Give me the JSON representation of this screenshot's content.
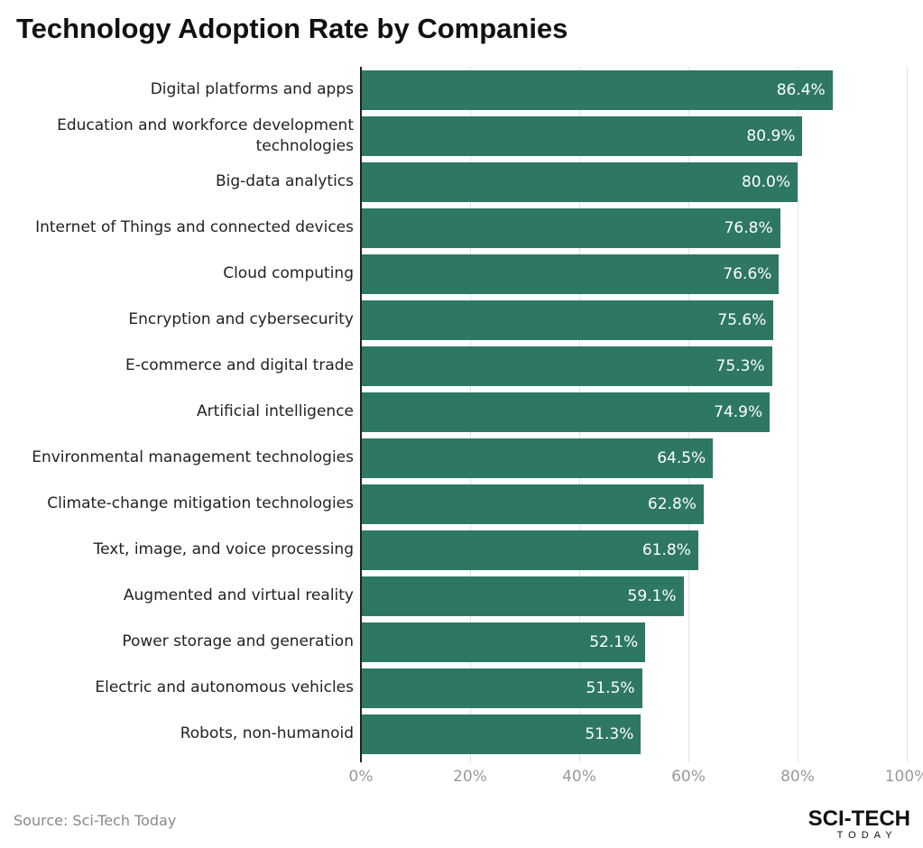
{
  "chart_data": {
    "type": "bar",
    "orientation": "horizontal",
    "title": "Technology Adoption Rate by Companies",
    "categories": [
      "Digital platforms and apps",
      "Education and workforce development technologies",
      "Big-data analytics",
      "Internet of Things and connected devices",
      "Cloud computing",
      "Encryption and cybersecurity",
      "E-commerce and digital trade",
      "Artificial intelligence",
      "Environmental management technologies",
      "Climate-change mitigation technologies",
      "Text, image, and voice processing",
      "Augmented and virtual reality",
      "Power storage and generation",
      "Electric and autonomous vehicles",
      "Robots, non-humanoid"
    ],
    "values": [
      86.4,
      80.9,
      80.0,
      76.8,
      76.6,
      75.6,
      75.3,
      74.9,
      64.5,
      62.8,
      61.8,
      59.1,
      52.1,
      51.5,
      51.3
    ],
    "value_labels": [
      "86.4%",
      "80.9%",
      "80.0%",
      "76.8%",
      "76.6%",
      "75.6%",
      "75.3%",
      "74.9%",
      "64.5%",
      "62.8%",
      "61.8%",
      "59.1%",
      "52.1%",
      "51.5%",
      "51.3%"
    ],
    "color": "#2e7863",
    "xlim": [
      0,
      100
    ],
    "xticks": [
      {
        "value": 0,
        "label": "0%"
      },
      {
        "value": 20,
        "label": "20%"
      },
      {
        "value": 40,
        "label": "40%"
      },
      {
        "value": 60,
        "label": "60%"
      },
      {
        "value": 80,
        "label": "80%"
      },
      {
        "value": 100,
        "label": "100%"
      }
    ],
    "grid": true,
    "source": "Source: Sci-Tech Today",
    "logo": {
      "text": "SCI-TECH",
      "subtext": "TODAY"
    }
  }
}
